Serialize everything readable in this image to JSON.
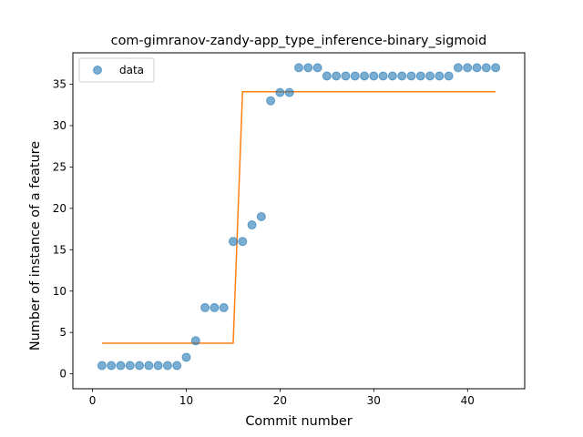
{
  "chart_data": {
    "type": "scatter",
    "title": "com-gimranov-zandy-app_type_inference-binary_sigmoid",
    "xlabel": "Commit number",
    "ylabel": "Number of instance of a feature",
    "xlim": [
      -2.1,
      46.1
    ],
    "ylim": [
      -1.8,
      38.8
    ],
    "xticks": [
      0,
      10,
      20,
      30,
      40
    ],
    "yticks": [
      0,
      5,
      10,
      15,
      20,
      25,
      30,
      35
    ],
    "grid": false,
    "legend_position": "upper left",
    "series": [
      {
        "name": "data",
        "kind": "scatter",
        "color": "#1f77b4",
        "x": [
          1,
          2,
          3,
          4,
          5,
          6,
          7,
          8,
          9,
          10,
          11,
          12,
          13,
          14,
          15,
          16,
          17,
          18,
          19,
          20,
          21,
          22,
          23,
          24,
          25,
          26,
          27,
          28,
          29,
          30,
          31,
          32,
          33,
          34,
          35,
          36,
          37,
          38,
          39,
          40,
          41,
          42,
          43
        ],
        "y": [
          1,
          1,
          1,
          1,
          1,
          1,
          1,
          1,
          1,
          2,
          4,
          8,
          8,
          8,
          16,
          16,
          18,
          19,
          33,
          34,
          34,
          37,
          37,
          37,
          36,
          36,
          36,
          36,
          36,
          36,
          36,
          36,
          36,
          36,
          36,
          36,
          36,
          36,
          37,
          37,
          37,
          37,
          37
        ]
      },
      {
        "kind": "line",
        "color": "#ff7f0e",
        "x": [
          1,
          2,
          3,
          4,
          5,
          6,
          7,
          8,
          9,
          10,
          11,
          12,
          13,
          14,
          15,
          16,
          17,
          18,
          19,
          20,
          21,
          22,
          23,
          24,
          25,
          26,
          27,
          28,
          29,
          30,
          31,
          32,
          33,
          34,
          35,
          36,
          37,
          38,
          39,
          40,
          41,
          42,
          43
        ],
        "y": [
          3.7,
          3.7,
          3.7,
          3.7,
          3.7,
          3.7,
          3.7,
          3.7,
          3.7,
          3.7,
          3.7,
          3.7,
          3.7,
          3.7,
          3.7,
          34.1,
          34.1,
          34.1,
          34.1,
          34.1,
          34.1,
          34.1,
          34.1,
          34.1,
          34.1,
          34.1,
          34.1,
          34.1,
          34.1,
          34.1,
          34.1,
          34.1,
          34.1,
          34.1,
          34.1,
          34.1,
          34.1,
          34.1,
          34.1,
          34.1,
          34.1,
          34.1,
          34.1
        ]
      }
    ]
  }
}
